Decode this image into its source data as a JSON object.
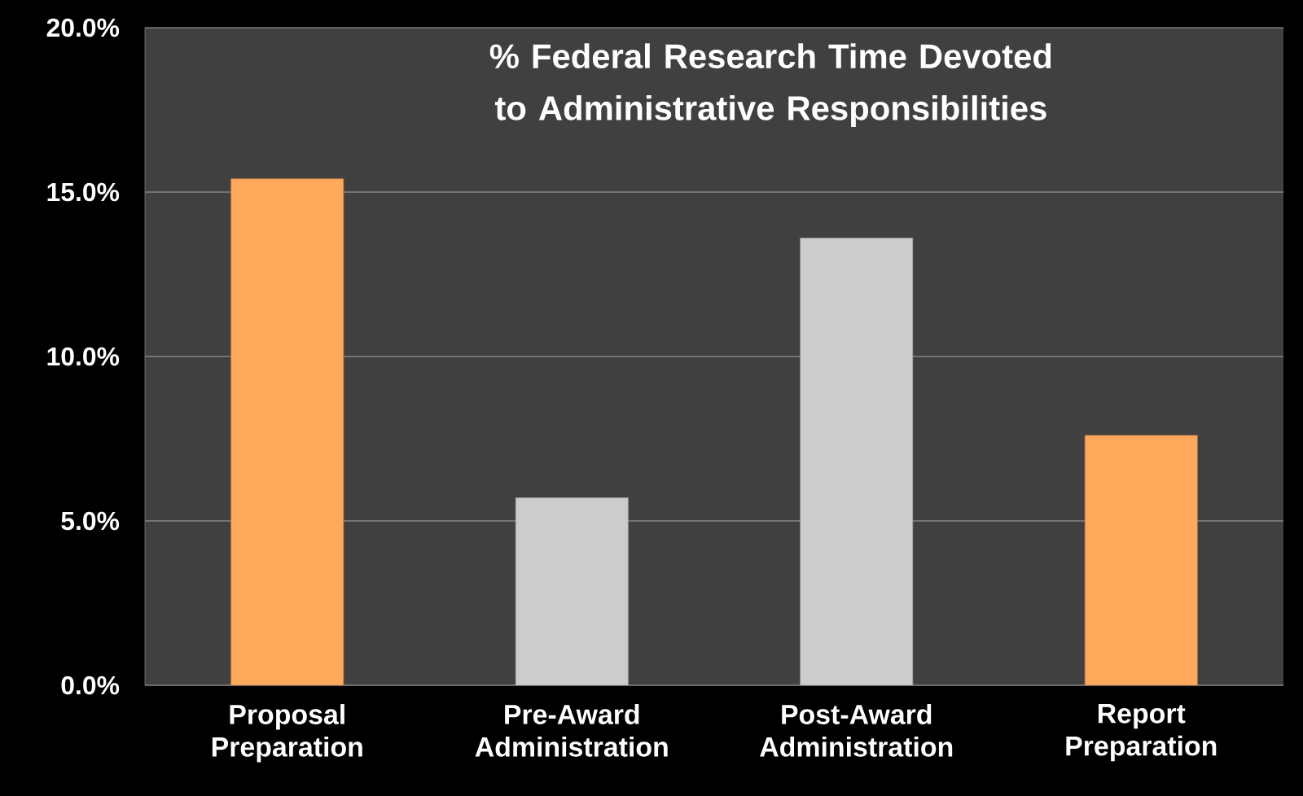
{
  "chart_data": {
    "type": "bar",
    "title": "% Federal Research Time Devoted to Administrative Responsibilities",
    "categories": [
      "Proposal Preparation",
      "Pre-Award Administration",
      "Post-Award Administration",
      "Report Preparation"
    ],
    "values": [
      15.4,
      5.7,
      13.6,
      7.6
    ],
    "colors": [
      "#ffa95c",
      "#cccccc",
      "#cccccc",
      "#ffa95c"
    ],
    "ylim": [
      0,
      20
    ],
    "yticks": [
      {
        "value": 0,
        "label": "0.0%"
      },
      {
        "value": 5,
        "label": "5.0%"
      },
      {
        "value": 10,
        "label": "10.0%"
      },
      {
        "value": 15,
        "label": "15.0%"
      },
      {
        "value": 20,
        "label": "20.0%"
      }
    ],
    "grid": "y"
  }
}
